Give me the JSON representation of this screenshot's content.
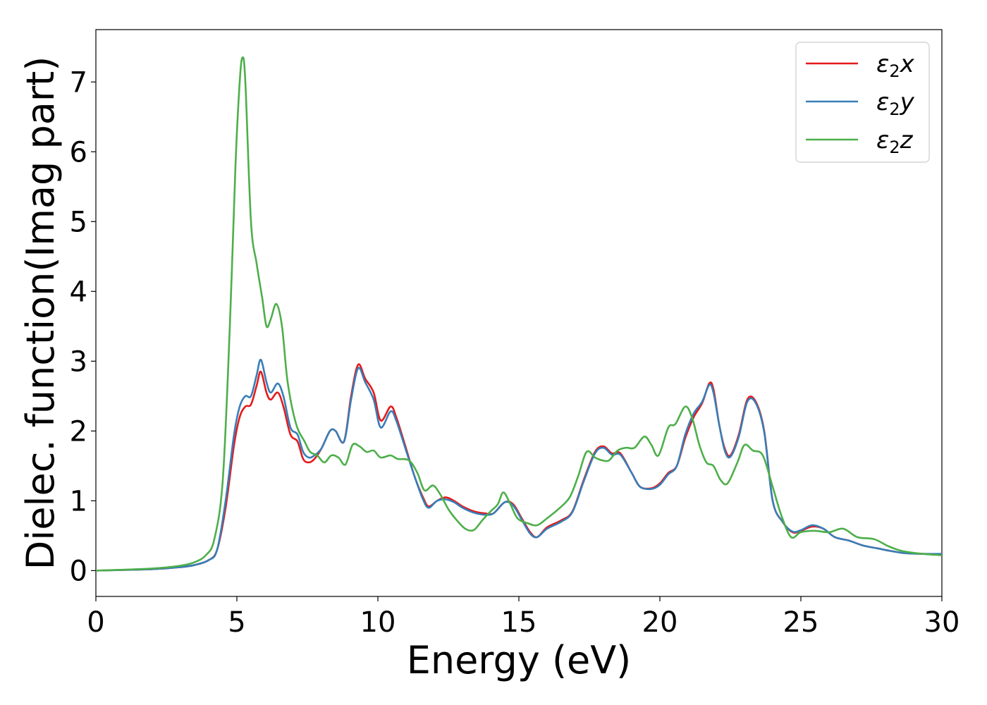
{
  "chart_data": {
    "type": "line",
    "xlabel": "Energy (eV)",
    "ylabel": "Dielec. function(Imag part)",
    "xlim": [
      0,
      30
    ],
    "ylim": [
      -0.37,
      7.75
    ],
    "xticks": [
      "0",
      "5",
      "10",
      "15",
      "20",
      "25",
      "30"
    ],
    "yticks": [
      "0",
      "1",
      "2",
      "3",
      "4",
      "5",
      "6",
      "7"
    ],
    "grid": false,
    "legend_position": "top-right",
    "series": [
      {
        "name": "ε₂x",
        "legend_base": "ε",
        "legend_sub": "2",
        "legend_var": "x",
        "color": "#e41a1c",
        "points": [
          [
            0,
            0.0
          ],
          [
            2,
            0.02
          ],
          [
            3,
            0.05
          ],
          [
            3.5,
            0.08
          ],
          [
            4,
            0.15
          ],
          [
            4.3,
            0.3
          ],
          [
            4.6,
            0.9
          ],
          [
            4.9,
            1.8
          ],
          [
            5.1,
            2.2
          ],
          [
            5.3,
            2.35
          ],
          [
            5.5,
            2.38
          ],
          [
            5.7,
            2.65
          ],
          [
            5.85,
            2.85
          ],
          [
            6.05,
            2.55
          ],
          [
            6.2,
            2.45
          ],
          [
            6.45,
            2.55
          ],
          [
            6.65,
            2.35
          ],
          [
            6.9,
            1.95
          ],
          [
            7.15,
            1.85
          ],
          [
            7.35,
            1.6
          ],
          [
            7.55,
            1.55
          ],
          [
            7.75,
            1.6
          ],
          [
            8.0,
            1.75
          ],
          [
            8.3,
            2.0
          ],
          [
            8.5,
            2.0
          ],
          [
            8.8,
            1.85
          ],
          [
            9.05,
            2.5
          ],
          [
            9.3,
            2.95
          ],
          [
            9.55,
            2.75
          ],
          [
            9.85,
            2.55
          ],
          [
            10.1,
            2.15
          ],
          [
            10.45,
            2.35
          ],
          [
            10.65,
            2.2
          ],
          [
            11.0,
            1.75
          ],
          [
            11.3,
            1.35
          ],
          [
            11.6,
            1.05
          ],
          [
            11.8,
            0.92
          ],
          [
            12.1,
            1.0
          ],
          [
            12.4,
            1.05
          ],
          [
            12.7,
            1.0
          ],
          [
            13.0,
            0.92
          ],
          [
            13.4,
            0.85
          ],
          [
            13.8,
            0.82
          ],
          [
            14.1,
            0.82
          ],
          [
            14.5,
            0.98
          ],
          [
            14.8,
            0.95
          ],
          [
            15.1,
            0.75
          ],
          [
            15.4,
            0.55
          ],
          [
            15.65,
            0.48
          ],
          [
            16.0,
            0.62
          ],
          [
            16.5,
            0.72
          ],
          [
            16.9,
            0.85
          ],
          [
            17.3,
            1.3
          ],
          [
            17.7,
            1.7
          ],
          [
            18.0,
            1.78
          ],
          [
            18.3,
            1.68
          ],
          [
            18.6,
            1.68
          ],
          [
            19.0,
            1.4
          ],
          [
            19.3,
            1.2
          ],
          [
            19.7,
            1.18
          ],
          [
            20.0,
            1.25
          ],
          [
            20.3,
            1.4
          ],
          [
            20.6,
            1.5
          ],
          [
            20.9,
            1.9
          ],
          [
            21.2,
            2.2
          ],
          [
            21.5,
            2.4
          ],
          [
            21.75,
            2.68
          ],
          [
            21.9,
            2.6
          ],
          [
            22.1,
            2.1
          ],
          [
            22.3,
            1.75
          ],
          [
            22.5,
            1.65
          ],
          [
            22.8,
            1.95
          ],
          [
            23.1,
            2.45
          ],
          [
            23.4,
            2.42
          ],
          [
            23.7,
            2.0
          ],
          [
            24.0,
            1.0
          ],
          [
            24.35,
            0.7
          ],
          [
            24.7,
            0.55
          ],
          [
            25.0,
            0.57
          ],
          [
            25.4,
            0.63
          ],
          [
            25.8,
            0.6
          ],
          [
            26.2,
            0.48
          ],
          [
            26.7,
            0.43
          ],
          [
            27.2,
            0.36
          ],
          [
            27.7,
            0.32
          ],
          [
            28.2,
            0.28
          ],
          [
            28.7,
            0.25
          ],
          [
            29.3,
            0.24
          ],
          [
            30,
            0.23
          ]
        ]
      },
      {
        "name": "ε₂y",
        "legend_base": "ε",
        "legend_sub": "2",
        "legend_var": "y",
        "color": "#377eb8",
        "points": [
          [
            0,
            0.0
          ],
          [
            2,
            0.02
          ],
          [
            3,
            0.05
          ],
          [
            3.5,
            0.08
          ],
          [
            4,
            0.15
          ],
          [
            4.3,
            0.3
          ],
          [
            4.6,
            1.0
          ],
          [
            4.9,
            1.95
          ],
          [
            5.1,
            2.35
          ],
          [
            5.3,
            2.5
          ],
          [
            5.5,
            2.5
          ],
          [
            5.7,
            2.8
          ],
          [
            5.85,
            3.02
          ],
          [
            6.05,
            2.7
          ],
          [
            6.2,
            2.55
          ],
          [
            6.45,
            2.68
          ],
          [
            6.65,
            2.5
          ],
          [
            6.9,
            2.05
          ],
          [
            7.15,
            1.95
          ],
          [
            7.35,
            1.7
          ],
          [
            7.55,
            1.62
          ],
          [
            7.75,
            1.65
          ],
          [
            8.0,
            1.75
          ],
          [
            8.3,
            2.0
          ],
          [
            8.5,
            2.0
          ],
          [
            8.8,
            1.85
          ],
          [
            9.05,
            2.45
          ],
          [
            9.3,
            2.9
          ],
          [
            9.55,
            2.7
          ],
          [
            9.85,
            2.45
          ],
          [
            10.1,
            2.05
          ],
          [
            10.45,
            2.28
          ],
          [
            10.65,
            2.15
          ],
          [
            11.0,
            1.72
          ],
          [
            11.3,
            1.35
          ],
          [
            11.6,
            1.02
          ],
          [
            11.8,
            0.9
          ],
          [
            12.1,
            1.0
          ],
          [
            12.4,
            1.02
          ],
          [
            12.7,
            0.98
          ],
          [
            13.0,
            0.9
          ],
          [
            13.4,
            0.83
          ],
          [
            13.8,
            0.8
          ],
          [
            14.1,
            0.82
          ],
          [
            14.5,
            0.98
          ],
          [
            14.8,
            0.93
          ],
          [
            15.1,
            0.73
          ],
          [
            15.4,
            0.53
          ],
          [
            15.65,
            0.48
          ],
          [
            16.0,
            0.6
          ],
          [
            16.5,
            0.7
          ],
          [
            16.9,
            0.84
          ],
          [
            17.3,
            1.28
          ],
          [
            17.7,
            1.68
          ],
          [
            18.0,
            1.76
          ],
          [
            18.3,
            1.66
          ],
          [
            18.6,
            1.66
          ],
          [
            19.0,
            1.4
          ],
          [
            19.3,
            1.2
          ],
          [
            19.7,
            1.17
          ],
          [
            20.0,
            1.23
          ],
          [
            20.3,
            1.38
          ],
          [
            20.6,
            1.5
          ],
          [
            20.9,
            1.95
          ],
          [
            21.2,
            2.25
          ],
          [
            21.5,
            2.42
          ],
          [
            21.75,
            2.66
          ],
          [
            21.9,
            2.55
          ],
          [
            22.1,
            2.1
          ],
          [
            22.3,
            1.72
          ],
          [
            22.5,
            1.63
          ],
          [
            22.8,
            1.92
          ],
          [
            23.1,
            2.42
          ],
          [
            23.4,
            2.4
          ],
          [
            23.7,
            1.98
          ],
          [
            24.0,
            1.0
          ],
          [
            24.35,
            0.7
          ],
          [
            24.7,
            0.56
          ],
          [
            25.0,
            0.58
          ],
          [
            25.4,
            0.65
          ],
          [
            25.8,
            0.6
          ],
          [
            26.2,
            0.48
          ],
          [
            26.7,
            0.43
          ],
          [
            27.2,
            0.36
          ],
          [
            27.7,
            0.32
          ],
          [
            28.2,
            0.28
          ],
          [
            28.7,
            0.25
          ],
          [
            29.3,
            0.24
          ],
          [
            30,
            0.24
          ]
        ]
      },
      {
        "name": "ε₂z",
        "legend_base": "ε",
        "legend_sub": "2",
        "legend_var": "z",
        "color": "#4daf4a",
        "points": [
          [
            0,
            0.0
          ],
          [
            2,
            0.03
          ],
          [
            3,
            0.07
          ],
          [
            3.5,
            0.12
          ],
          [
            3.9,
            0.22
          ],
          [
            4.2,
            0.45
          ],
          [
            4.5,
            1.3
          ],
          [
            4.75,
            3.5
          ],
          [
            4.95,
            5.8
          ],
          [
            5.1,
            7.0
          ],
          [
            5.2,
            7.35
          ],
          [
            5.3,
            7.0
          ],
          [
            5.5,
            5.0
          ],
          [
            5.7,
            4.4
          ],
          [
            5.9,
            3.9
          ],
          [
            6.05,
            3.5
          ],
          [
            6.2,
            3.6
          ],
          [
            6.4,
            3.82
          ],
          [
            6.6,
            3.5
          ],
          [
            6.8,
            2.7
          ],
          [
            7.1,
            2.1
          ],
          [
            7.4,
            1.85
          ],
          [
            7.6,
            1.7
          ],
          [
            7.85,
            1.65
          ],
          [
            8.1,
            1.55
          ],
          [
            8.35,
            1.65
          ],
          [
            8.6,
            1.62
          ],
          [
            8.85,
            1.52
          ],
          [
            9.1,
            1.8
          ],
          [
            9.35,
            1.78
          ],
          [
            9.6,
            1.7
          ],
          [
            9.85,
            1.72
          ],
          [
            10.1,
            1.62
          ],
          [
            10.45,
            1.65
          ],
          [
            10.7,
            1.6
          ],
          [
            11.1,
            1.58
          ],
          [
            11.4,
            1.4
          ],
          [
            11.65,
            1.15
          ],
          [
            11.95,
            1.22
          ],
          [
            12.2,
            1.1
          ],
          [
            12.5,
            0.88
          ],
          [
            12.8,
            0.72
          ],
          [
            13.1,
            0.6
          ],
          [
            13.4,
            0.58
          ],
          [
            13.7,
            0.72
          ],
          [
            14.0,
            0.85
          ],
          [
            14.25,
            0.95
          ],
          [
            14.45,
            1.12
          ],
          [
            14.7,
            0.95
          ],
          [
            14.95,
            0.75
          ],
          [
            15.3,
            0.68
          ],
          [
            15.65,
            0.65
          ],
          [
            16.0,
            0.75
          ],
          [
            16.4,
            0.88
          ],
          [
            16.8,
            1.05
          ],
          [
            17.1,
            1.35
          ],
          [
            17.4,
            1.7
          ],
          [
            17.7,
            1.62
          ],
          [
            17.95,
            1.58
          ],
          [
            18.2,
            1.58
          ],
          [
            18.5,
            1.72
          ],
          [
            18.8,
            1.76
          ],
          [
            19.1,
            1.76
          ],
          [
            19.45,
            1.92
          ],
          [
            19.7,
            1.8
          ],
          [
            19.95,
            1.65
          ],
          [
            20.3,
            2.05
          ],
          [
            20.55,
            2.1
          ],
          [
            20.9,
            2.35
          ],
          [
            21.15,
            2.18
          ],
          [
            21.4,
            1.8
          ],
          [
            21.65,
            1.55
          ],
          [
            21.9,
            1.5
          ],
          [
            22.15,
            1.3
          ],
          [
            22.4,
            1.25
          ],
          [
            22.75,
            1.55
          ],
          [
            23.0,
            1.8
          ],
          [
            23.3,
            1.72
          ],
          [
            23.65,
            1.65
          ],
          [
            24.0,
            1.2
          ],
          [
            24.3,
            0.8
          ],
          [
            24.65,
            0.48
          ],
          [
            25.0,
            0.55
          ],
          [
            25.5,
            0.57
          ],
          [
            26.0,
            0.55
          ],
          [
            26.5,
            0.6
          ],
          [
            27.0,
            0.48
          ],
          [
            27.6,
            0.45
          ],
          [
            28.1,
            0.35
          ],
          [
            28.6,
            0.28
          ],
          [
            29.3,
            0.24
          ],
          [
            30,
            0.22
          ]
        ]
      }
    ]
  }
}
